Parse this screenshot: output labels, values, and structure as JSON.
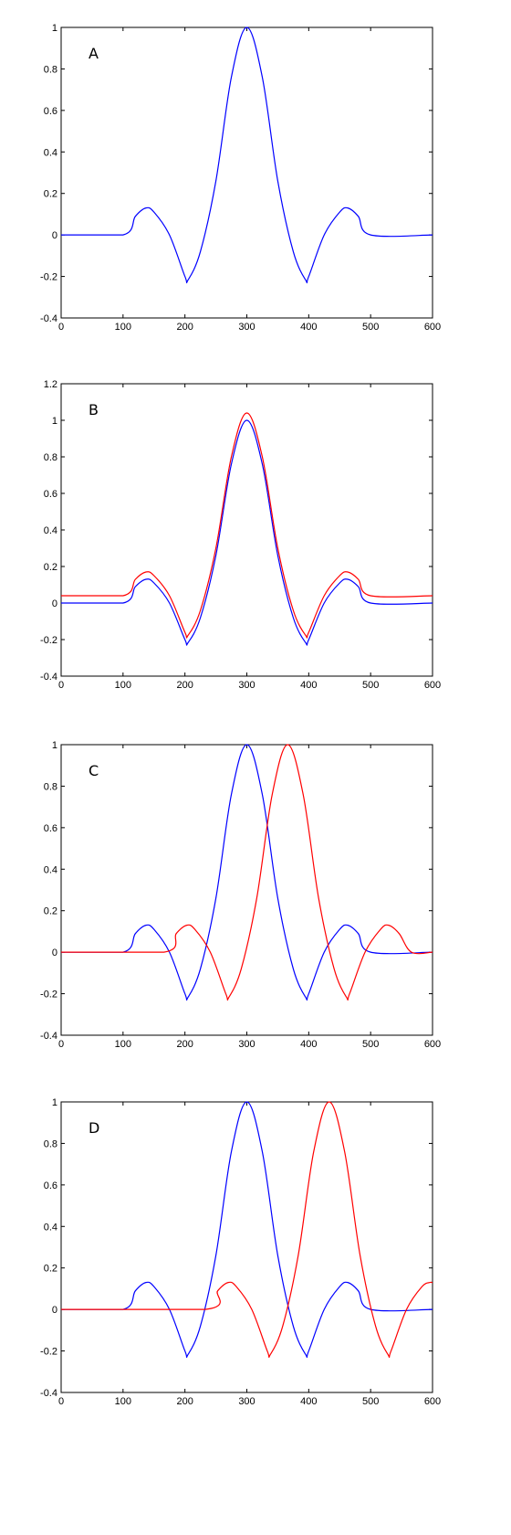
{
  "chart_data": [
    {
      "type": "line",
      "panel_label": "A",
      "xlim": [
        0,
        600
      ],
      "ylim": [
        -0.4,
        1
      ],
      "x_ticks": [
        0,
        100,
        200,
        300,
        400,
        500,
        600
      ],
      "y_ticks": [
        -0.4,
        -0.2,
        0,
        0.2,
        0.4,
        0.6,
        0.8,
        1
      ],
      "grid": false,
      "series": [
        {
          "color": "#0000ff",
          "x": [
            0,
            100,
            120,
            137,
            150,
            175,
            200,
            205,
            225,
            250,
            275,
            300,
            325,
            350,
            375,
            395,
            400,
            425,
            450,
            463,
            480,
            500,
            600
          ],
          "y": [
            0,
            0,
            0.09,
            0.13,
            0.11,
            0.0,
            -0.2,
            -0.217,
            -0.08,
            0.26,
            0.76,
            1.0,
            0.76,
            0.26,
            -0.08,
            -0.217,
            -0.2,
            0.0,
            0.11,
            0.13,
            0.09,
            0,
            0
          ]
        }
      ]
    },
    {
      "type": "line",
      "panel_label": "B",
      "xlim": [
        0,
        600
      ],
      "ylim": [
        -0.4,
        1.2
      ],
      "x_ticks": [
        0,
        100,
        200,
        300,
        400,
        500,
        600
      ],
      "y_ticks": [
        -0.4,
        -0.2,
        0,
        0.2,
        0.4,
        0.6,
        0.8,
        1,
        1.2
      ],
      "grid": false,
      "series": [
        {
          "color": "#0000ff",
          "x": [
            0,
            100,
            120,
            137,
            150,
            175,
            200,
            205,
            225,
            250,
            275,
            300,
            325,
            350,
            375,
            395,
            400,
            425,
            450,
            463,
            480,
            500,
            600
          ],
          "y": [
            0,
            0,
            0.09,
            0.13,
            0.11,
            0.0,
            -0.2,
            -0.217,
            -0.08,
            0.26,
            0.76,
            1.0,
            0.76,
            0.26,
            -0.08,
            -0.217,
            -0.2,
            0.0,
            0.11,
            0.13,
            0.09,
            0,
            0
          ]
        },
        {
          "color": "#ff0000",
          "x": [
            0,
            100,
            120,
            137,
            150,
            175,
            200,
            205,
            225,
            250,
            275,
            300,
            325,
            350,
            375,
            395,
            400,
            425,
            450,
            463,
            480,
            500,
            600
          ],
          "y": [
            0.04,
            0.04,
            0.13,
            0.17,
            0.15,
            0.04,
            -0.16,
            -0.177,
            -0.04,
            0.3,
            0.8,
            1.04,
            0.8,
            0.3,
            -0.04,
            -0.177,
            -0.16,
            0.04,
            0.15,
            0.17,
            0.13,
            0.04,
            0.04
          ]
        }
      ]
    },
    {
      "type": "line",
      "panel_label": "C",
      "xlim": [
        0,
        600
      ],
      "ylim": [
        -0.4,
        1
      ],
      "x_ticks": [
        0,
        100,
        200,
        300,
        400,
        500,
        600
      ],
      "y_ticks": [
        -0.4,
        -0.2,
        0,
        0.2,
        0.4,
        0.6,
        0.8,
        1
      ],
      "grid": false,
      "series": [
        {
          "color": "#0000ff",
          "x": [
            0,
            100,
            120,
            137,
            150,
            175,
            200,
            205,
            225,
            250,
            275,
            300,
            325,
            350,
            375,
            395,
            400,
            425,
            450,
            463,
            480,
            500,
            600
          ],
          "y": [
            0,
            0,
            0.09,
            0.13,
            0.11,
            0.0,
            -0.2,
            -0.217,
            -0.08,
            0.26,
            0.76,
            1.0,
            0.76,
            0.26,
            -0.08,
            -0.217,
            -0.2,
            0.0,
            0.11,
            0.13,
            0.09,
            0,
            0
          ]
        },
        {
          "color": "#ff0000",
          "x": [
            0,
            166,
            186,
            203,
            216,
            241,
            266,
            271,
            291,
            316,
            341,
            366,
            391,
            416,
            441,
            461,
            466,
            491,
            516,
            529,
            546,
            566,
            600
          ],
          "y": [
            0,
            0,
            0.09,
            0.13,
            0.11,
            0.0,
            -0.2,
            -0.217,
            -0.08,
            0.26,
            0.76,
            1.0,
            0.76,
            0.26,
            -0.08,
            -0.217,
            -0.2,
            0.0,
            0.11,
            0.13,
            0.09,
            0,
            0
          ]
        }
      ]
    },
    {
      "type": "line",
      "panel_label": "D",
      "xlim": [
        0,
        600
      ],
      "ylim": [
        -0.4,
        1
      ],
      "x_ticks": [
        0,
        100,
        200,
        300,
        400,
        500,
        600
      ],
      "y_ticks": [
        -0.4,
        -0.2,
        0,
        0.2,
        0.4,
        0.6,
        0.8,
        1
      ],
      "grid": false,
      "series": [
        {
          "color": "#0000ff",
          "x": [
            0,
            100,
            120,
            137,
            150,
            175,
            200,
            205,
            225,
            250,
            275,
            300,
            325,
            350,
            375,
            395,
            400,
            425,
            450,
            463,
            480,
            500,
            600
          ],
          "y": [
            0,
            0,
            0.09,
            0.13,
            0.11,
            0.0,
            -0.2,
            -0.217,
            -0.08,
            0.26,
            0.76,
            1.0,
            0.76,
            0.26,
            -0.08,
            -0.217,
            -0.2,
            0.0,
            0.11,
            0.13,
            0.09,
            0,
            0
          ]
        },
        {
          "color": "#ff0000",
          "x": [
            0,
            233,
            253,
            270,
            283,
            308,
            333,
            338,
            358,
            383,
            408,
            433,
            458,
            483,
            508,
            528,
            533,
            558,
            583,
            596,
            600
          ],
          "y": [
            0,
            0,
            0.09,
            0.13,
            0.11,
            0.0,
            -0.2,
            -0.217,
            -0.08,
            0.26,
            0.76,
            1.0,
            0.76,
            0.26,
            -0.08,
            -0.217,
            -0.2,
            0.0,
            0.11,
            0.13,
            0.128
          ]
        }
      ]
    }
  ]
}
